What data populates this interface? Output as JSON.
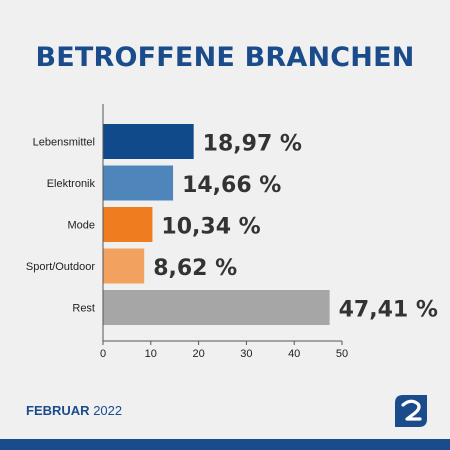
{
  "chart_data": {
    "type": "bar",
    "orientation": "horizontal",
    "title": "BETROFFENE BRANCHEN",
    "categories": [
      "Lebensmittel",
      "Elektronik",
      "Mode",
      "Sport/Outdoor",
      "Rest"
    ],
    "values": [
      18.97,
      14.66,
      10.34,
      8.62,
      47.41
    ],
    "value_labels": [
      "18,97 %",
      "14,66 %",
      "10,34 %",
      "8,62 %",
      "47,41 %"
    ],
    "colors": [
      "#114a8a",
      "#4e86bb",
      "#ef7d1f",
      "#f2a15f",
      "#a6a6a6"
    ],
    "xlim": [
      0,
      50
    ],
    "xticks": [
      "0",
      "10",
      "20",
      "30",
      "40",
      "50"
    ],
    "xtick_values": [
      0,
      10,
      20,
      30,
      40,
      50
    ],
    "grid": false,
    "xlabel": "",
    "ylabel": ""
  },
  "footer": {
    "month": "FEBRUAR",
    "year": "2022"
  },
  "brand_color": "#1a4c8c",
  "logo_icon": "brand-logo-icon"
}
